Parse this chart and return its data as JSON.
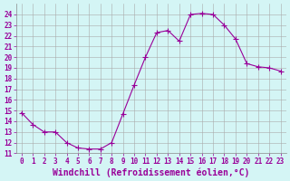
{
  "x": [
    0,
    1,
    2,
    3,
    4,
    5,
    6,
    7,
    8,
    9,
    10,
    11,
    12,
    13,
    14,
    15,
    16,
    17,
    18,
    19,
    20,
    21,
    22,
    23
  ],
  "y": [
    14.8,
    13.7,
    13.0,
    13.0,
    12.0,
    11.5,
    11.4,
    11.4,
    12.0,
    14.7,
    17.4,
    20.0,
    22.3,
    22.5,
    21.5,
    24.0,
    24.1,
    24.0,
    23.0,
    21.7,
    19.4,
    19.1,
    19.0,
    18.7
  ],
  "line_color": "#990099",
  "marker": "+",
  "marker_size": 4,
  "bg_color": "#d4f5f5",
  "grid_color": "#aaaaaa",
  "xlabel": "Windchill (Refroidissement éolien,°C)",
  "ylim": [
    11,
    25
  ],
  "xlim": [
    -0.5,
    23.5
  ],
  "yticks": [
    11,
    12,
    13,
    14,
    15,
    16,
    17,
    18,
    19,
    20,
    21,
    22,
    23,
    24
  ],
  "xticks": [
    0,
    1,
    2,
    3,
    4,
    5,
    6,
    7,
    8,
    9,
    10,
    11,
    12,
    13,
    14,
    15,
    16,
    17,
    18,
    19,
    20,
    21,
    22,
    23
  ],
  "tick_label_color": "#990099",
  "tick_label_size": 5.5,
  "xlabel_size": 7.0,
  "xlabel_color": "#990099",
  "linewidth": 0.8,
  "markeredgewidth": 0.8
}
